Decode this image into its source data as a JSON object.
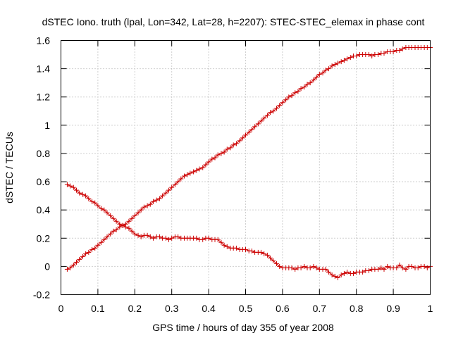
{
  "chart_data": {
    "type": "scatter",
    "title": "dSTEC Iono. truth (lpal, Lon=342, Lat=28, h=2207): STEC-STEC_elemax in phase cont",
    "xlabel": "GPS time / hours of day 355 of year 2008",
    "ylabel": "dSTEC  / TECUs",
    "xlim": [
      0,
      1
    ],
    "ylim": [
      -0.2,
      1.6
    ],
    "x_ticks": [
      0,
      0.1,
      0.2,
      0.3,
      0.4,
      0.5,
      0.6,
      0.7,
      0.8,
      0.9,
      1
    ],
    "x_tick_labels": [
      "0",
      "0.1",
      "0.2",
      "0.3",
      "0.4",
      "0.5",
      "0.6",
      "0.7",
      "0.8",
      "0.9",
      "1"
    ],
    "y_ticks": [
      -0.2,
      0,
      0.2,
      0.4,
      0.6,
      0.8,
      1,
      1.2,
      1.4,
      1.6
    ],
    "y_tick_labels": [
      "-0.2",
      "0",
      "0.2",
      "0.4",
      "0.6",
      "0.8",
      "1",
      "1.2",
      "1.4",
      "1.6"
    ],
    "grid": true,
    "marker": "+",
    "color": "#cc0000",
    "series": [
      {
        "x": [
          0.017,
          0.025,
          0.034,
          0.042,
          0.05,
          0.059,
          0.067,
          0.075,
          0.084,
          0.092,
          0.1,
          0.109,
          0.117,
          0.125,
          0.134,
          0.142,
          0.15,
          0.159,
          0.167,
          0.175,
          0.184,
          0.192,
          0.2,
          0.209,
          0.217,
          0.225,
          0.234,
          0.242,
          0.25,
          0.259,
          0.267,
          0.275,
          0.284,
          0.292,
          0.3,
          0.309,
          0.317,
          0.325,
          0.334,
          0.342,
          0.35,
          0.359,
          0.367,
          0.375,
          0.384,
          0.392,
          0.4,
          0.409,
          0.417,
          0.425,
          0.434,
          0.442,
          0.45,
          0.459,
          0.467,
          0.475,
          0.484,
          0.492,
          0.5,
          0.509,
          0.517,
          0.525,
          0.534,
          0.542,
          0.55,
          0.559,
          0.567,
          0.575,
          0.584,
          0.592,
          0.6,
          0.609,
          0.617,
          0.625,
          0.634,
          0.642,
          0.65,
          0.659,
          0.667,
          0.675,
          0.684,
          0.692,
          0.7,
          0.709,
          0.717,
          0.725,
          0.734,
          0.742,
          0.75,
          0.759,
          0.767,
          0.775,
          0.784,
          0.792,
          0.8,
          0.809,
          0.817,
          0.825,
          0.834,
          0.842,
          0.85,
          0.859,
          0.867,
          0.875,
          0.884,
          0.892,
          0.9,
          0.909,
          0.917,
          0.925,
          0.934,
          0.942,
          0.95,
          0.959,
          0.967,
          0.975,
          0.984,
          0.992,
          1.0
        ],
        "y": [
          -0.02,
          -0.01,
          0.01,
          0.03,
          0.05,
          0.07,
          0.09,
          0.1,
          0.12,
          0.13,
          0.15,
          0.17,
          0.19,
          0.21,
          0.23,
          0.25,
          0.26,
          0.28,
          0.29,
          0.3,
          0.32,
          0.34,
          0.36,
          0.38,
          0.4,
          0.42,
          0.43,
          0.44,
          0.46,
          0.47,
          0.48,
          0.5,
          0.52,
          0.54,
          0.56,
          0.58,
          0.6,
          0.62,
          0.64,
          0.65,
          0.66,
          0.67,
          0.68,
          0.69,
          0.7,
          0.72,
          0.74,
          0.76,
          0.77,
          0.79,
          0.8,
          0.81,
          0.83,
          0.84,
          0.86,
          0.87,
          0.89,
          0.91,
          0.93,
          0.95,
          0.97,
          0.99,
          1.01,
          1.03,
          1.05,
          1.07,
          1.09,
          1.1,
          1.12,
          1.14,
          1.16,
          1.18,
          1.2,
          1.21,
          1.23,
          1.24,
          1.26,
          1.27,
          1.29,
          1.3,
          1.32,
          1.34,
          1.36,
          1.37,
          1.39,
          1.4,
          1.42,
          1.43,
          1.44,
          1.45,
          1.46,
          1.47,
          1.48,
          1.49,
          1.49,
          1.5,
          1.5,
          1.5,
          1.5,
          1.49,
          1.5,
          1.5,
          1.51,
          1.51,
          1.52,
          1.52,
          1.52,
          1.53,
          1.53,
          1.54,
          1.55,
          1.55,
          1.55,
          1.55,
          1.55,
          1.55,
          1.55,
          1.55,
          1.55
        ]
      },
      {
        "x": [
          0.017,
          0.025,
          0.034,
          0.042,
          0.05,
          0.059,
          0.067,
          0.075,
          0.084,
          0.092,
          0.1,
          0.109,
          0.117,
          0.125,
          0.134,
          0.142,
          0.15,
          0.159,
          0.167,
          0.175,
          0.184,
          0.192,
          0.2,
          0.209,
          0.217,
          0.225,
          0.234,
          0.242,
          0.25,
          0.259,
          0.267,
          0.275,
          0.284,
          0.292,
          0.3,
          0.309,
          0.317,
          0.325,
          0.334,
          0.342,
          0.35,
          0.359,
          0.367,
          0.375,
          0.384,
          0.392,
          0.4,
          0.409,
          0.417,
          0.425,
          0.434,
          0.442,
          0.45,
          0.459,
          0.467,
          0.475,
          0.484,
          0.492,
          0.5,
          0.509,
          0.517,
          0.525,
          0.534,
          0.542,
          0.55,
          0.559,
          0.567,
          0.575,
          0.584,
          0.592,
          0.6,
          0.609,
          0.617,
          0.625,
          0.634,
          0.642,
          0.65,
          0.659,
          0.667,
          0.675,
          0.684,
          0.692,
          0.7,
          0.709,
          0.717,
          0.725,
          0.734,
          0.742,
          0.75,
          0.759,
          0.767,
          0.775,
          0.784,
          0.792,
          0.8,
          0.809,
          0.817,
          0.825,
          0.834,
          0.842,
          0.85,
          0.859,
          0.867,
          0.875,
          0.884,
          0.892,
          0.9,
          0.909,
          0.917,
          0.925,
          0.934,
          0.942,
          0.95,
          0.959,
          0.967,
          0.975,
          0.984,
          0.992,
          1.0
        ],
        "y": [
          0.58,
          0.57,
          0.56,
          0.54,
          0.52,
          0.51,
          0.5,
          0.48,
          0.46,
          0.45,
          0.43,
          0.41,
          0.4,
          0.38,
          0.36,
          0.34,
          0.32,
          0.3,
          0.29,
          0.28,
          0.27,
          0.25,
          0.23,
          0.22,
          0.21,
          0.22,
          0.22,
          0.21,
          0.2,
          0.21,
          0.21,
          0.2,
          0.2,
          0.19,
          0.2,
          0.21,
          0.21,
          0.2,
          0.2,
          0.2,
          0.2,
          0.2,
          0.2,
          0.19,
          0.19,
          0.2,
          0.2,
          0.19,
          0.19,
          0.19,
          0.17,
          0.15,
          0.14,
          0.13,
          0.13,
          0.13,
          0.12,
          0.12,
          0.12,
          0.11,
          0.11,
          0.1,
          0.1,
          0.1,
          0.09,
          0.08,
          0.06,
          0.04,
          0.02,
          0.0,
          -0.01,
          -0.01,
          -0.01,
          -0.01,
          -0.02,
          -0.01,
          -0.01,
          0.0,
          -0.01,
          -0.01,
          0.0,
          -0.01,
          -0.02,
          -0.02,
          -0.02,
          -0.04,
          -0.06,
          -0.07,
          -0.08,
          -0.06,
          -0.05,
          -0.04,
          -0.05,
          -0.05,
          -0.04,
          -0.04,
          -0.04,
          -0.03,
          -0.03,
          -0.02,
          -0.02,
          -0.02,
          -0.01,
          -0.02,
          0.0,
          -0.01,
          -0.01,
          -0.01,
          0.01,
          -0.01,
          -0.02,
          0.0,
          0.0,
          -0.01,
          -0.01,
          0.0,
          0.0,
          -0.01,
          0.0
        ]
      }
    ]
  }
}
